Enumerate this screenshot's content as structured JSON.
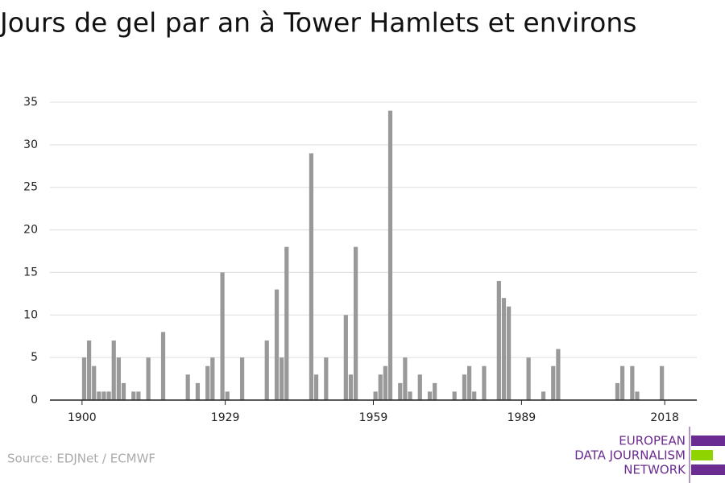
{
  "chart_data": {
    "type": "bar",
    "title": "Jours de gel par an à Tower Hamlets et environs",
    "source": "Source: EDJNet / ECMWF",
    "logo": [
      "EUROPEAN",
      "DATA JOURNALISM",
      "NETWORK"
    ],
    "color": "#999999",
    "x": [
      1900,
      1901,
      1902,
      1903,
      1904,
      1905,
      1906,
      1907,
      1908,
      1910,
      1911,
      1913,
      1916,
      1921,
      1923,
      1925,
      1926,
      1928,
      1929,
      1932,
      1937,
      1939,
      1940,
      1941,
      1946,
      1947,
      1949,
      1953,
      1954,
      1955,
      1959,
      1960,
      1961,
      1962,
      1964,
      1965,
      1966,
      1968,
      1970,
      1971,
      1975,
      1977,
      1978,
      1979,
      1981,
      1984,
      1985,
      1986,
      1990,
      1993,
      1995,
      1996,
      2008,
      2009,
      2011,
      2012,
      2017
    ],
    "values": [
      5,
      7,
      4,
      1,
      1,
      1,
      7,
      5,
      2,
      1,
      1,
      5,
      8,
      3,
      2,
      4,
      5,
      15,
      1,
      5,
      7,
      13,
      5,
      18,
      29,
      3,
      5,
      10,
      3,
      18,
      1,
      3,
      4,
      34,
      2,
      5,
      1,
      3,
      1,
      2,
      1,
      3,
      4,
      1,
      4,
      14,
      12,
      11,
      5,
      1,
      4,
      6,
      2,
      4,
      4,
      1,
      4
    ],
    "xlim": [
      1893.5,
      2024.5
    ],
    "xticks": [
      1900,
      1929,
      1959,
      1989,
      2018
    ],
    "ylim": [
      0,
      35
    ],
    "yticks": [
      0,
      5,
      10,
      15,
      20,
      25,
      30,
      35
    ],
    "grid": true
  }
}
